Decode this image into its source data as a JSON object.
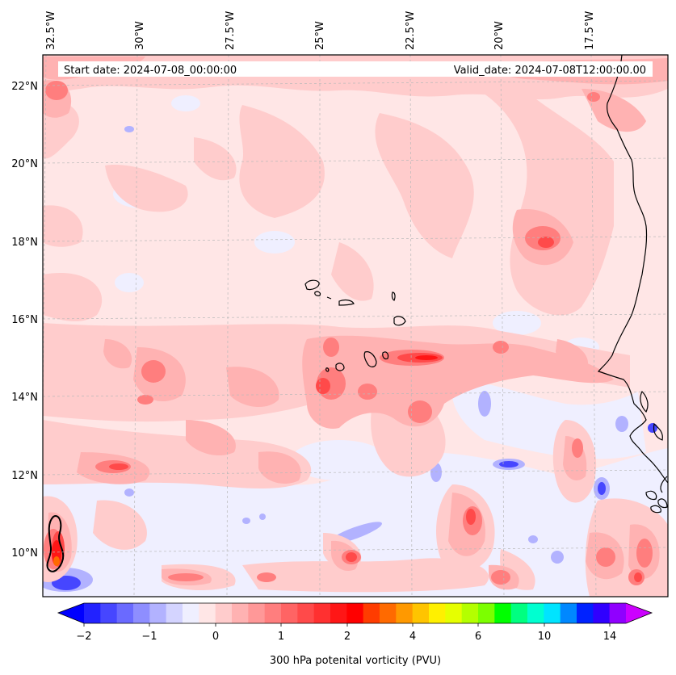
{
  "header": {
    "start_label": "Start date: 2024-07-08_00:00:00",
    "valid_label": "Valid_date: 2024-07-08T12:00:00.00"
  },
  "longitude_labels": [
    "32.5°W",
    "30°W",
    "27.5°W",
    "25°W",
    "22.5°W",
    "20°W",
    "17.5°W"
  ],
  "latitude_labels": [
    "22°N",
    "20°N",
    "18°N",
    "16°N",
    "14°N",
    "12°N",
    "10°N"
  ],
  "colorbar": {
    "title": "300 hPa potenital vorticity (PVU)",
    "tick_labels": [
      "−2",
      "−1",
      "0",
      "1",
      "2",
      "4",
      "6",
      "10",
      "14"
    ],
    "colors": [
      "#0000ff",
      "#2222ff",
      "#4646ff",
      "#6a6aff",
      "#8e8eff",
      "#b2b2ff",
      "#d4d4ff",
      "#efefff",
      "#ffe6e6",
      "#ffcccc",
      "#ffb2b2",
      "#ff9898",
      "#ff7e7e",
      "#ff6464",
      "#ff4a4a",
      "#ff3030",
      "#ff1616",
      "#ff0000",
      "#ff3c00",
      "#ff6a00",
      "#ff9900",
      "#ffc400",
      "#fff000",
      "#e6ff00",
      "#b4ff00",
      "#7cff00",
      "#00ff00",
      "#00ff80",
      "#00ffd0",
      "#00e4ff",
      "#0088ff",
      "#0022ff",
      "#3000ff",
      "#9000ff",
      "#cc00ff"
    ]
  },
  "palette": {
    "sea_base": "#ffe6e6",
    "frame": "#000000",
    "coast": "#000000",
    "grid": "#b9b9b9",
    "neg_light": "#efefff",
    "neg_mid": "#b2b2ff",
    "neg_dark": "#4646ff",
    "pos_1": "#ffcccc",
    "pos_2": "#ffb2b2",
    "pos_3": "#ff7e7e",
    "pos_4": "#ff4a4a",
    "pos_5": "#ff1616",
    "pos_6": "#ff6a00"
  },
  "map_extent": {
    "lon_min": -32.75,
    "lon_max": -15.5,
    "lat_min": 8.9,
    "lat_max": 22.8
  }
}
